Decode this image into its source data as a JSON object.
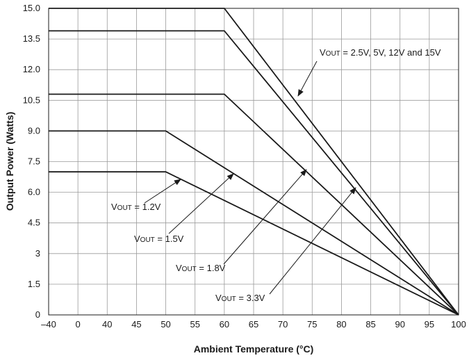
{
  "chart_data": {
    "type": "line",
    "xlabel": "Ambient Temperature (°C)",
    "ylabel": "Output Power (Watts)",
    "x_tick_labels": [
      "–40",
      "0",
      "40",
      "45",
      "50",
      "55",
      "60",
      "65",
      "70",
      "75",
      "80",
      "85",
      "90",
      "95",
      "100"
    ],
    "y_tick_labels": [
      "0",
      "1.5",
      "3",
      "4.5",
      "6.0",
      "7.5",
      "9.0",
      "10.5",
      "12.0",
      "13.5",
      "15.0"
    ],
    "y_values_of_ticks": [
      0,
      1.5,
      3,
      4.5,
      6.0,
      7.5,
      9.0,
      10.5,
      12.0,
      13.5,
      15.0
    ],
    "ylim": [
      0,
      15
    ],
    "grid": true,
    "series": [
      {
        "points": [
          [
            "–40",
            15.0
          ],
          [
            "60",
            15.0
          ],
          [
            "100",
            0
          ]
        ]
      },
      {
        "points": [
          [
            "–40",
            13.9
          ],
          [
            "60",
            13.9
          ],
          [
            "100",
            0
          ]
        ]
      },
      {
        "points": [
          [
            "–40",
            10.8
          ],
          [
            "60",
            10.8
          ],
          [
            "100",
            0
          ]
        ]
      },
      {
        "points": [
          [
            "–40",
            9.0
          ],
          [
            "50",
            9.0
          ],
          [
            "100",
            0
          ]
        ]
      },
      {
        "points": [
          [
            "–40",
            7.0
          ],
          [
            "50",
            7.0
          ],
          [
            "100",
            0
          ]
        ]
      }
    ],
    "annotations": [
      {
        "main": "V",
        "sub": "OUT",
        "rest": " = 2.5V, 5V, 12V and 15V"
      },
      {
        "main": "V",
        "sub": "OUT",
        "rest": " = 1.2V"
      },
      {
        "main": "V",
        "sub": "OUT",
        "rest": " = 1.5V"
      },
      {
        "main": "V",
        "sub": "OUT",
        "rest": " = 1.8V"
      },
      {
        "main": "V",
        "sub": "OUT",
        "rest": " = 3.3V"
      }
    ]
  }
}
